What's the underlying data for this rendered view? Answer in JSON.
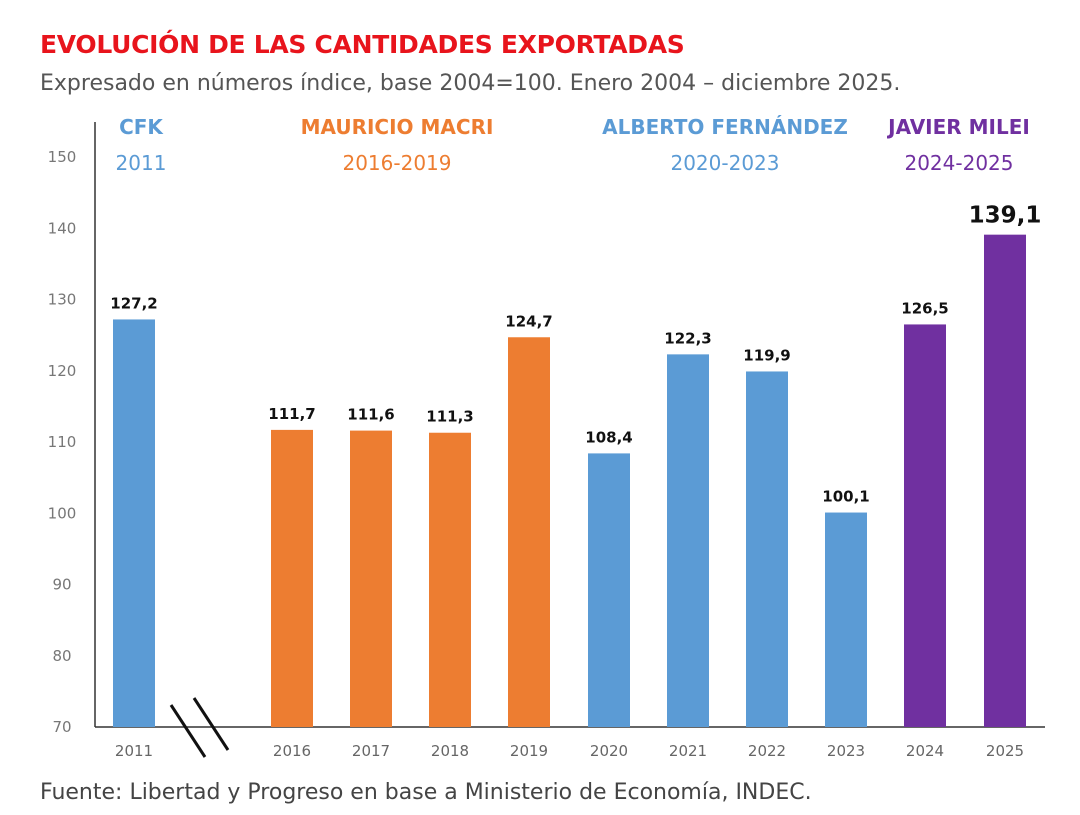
{
  "chart_data": {
    "type": "bar",
    "title": "EVOLUCIÓN DE LAS CANTIDADES EXPORTADAS",
    "subtitle": "Expresado en números índice, base 2004=100. Enero 2004 – diciembre 2025.",
    "source": "Fuente: Libertad y Progreso en base a Ministerio de Economía, INDEC.",
    "xlabel": "",
    "ylabel": "",
    "ylim": [
      70,
      150
    ],
    "yticks": [
      70,
      80,
      90,
      100,
      110,
      120,
      130,
      140,
      150
    ],
    "grid": false,
    "categories": [
      "2011",
      "2016",
      "2017",
      "2018",
      "2019",
      "2020",
      "2021",
      "2022",
      "2023",
      "2024",
      "2025"
    ],
    "values": [
      127.2,
      111.7,
      111.6,
      111.3,
      124.7,
      108.4,
      122.3,
      119.9,
      100.1,
      126.5,
      139.1
    ],
    "data_labels": [
      "127,2",
      "111,7",
      "111,6",
      "111,3",
      "124,7",
      "108,4",
      "122,3",
      "119,9",
      "100,1",
      "126,5",
      "139,1"
    ],
    "bar_period": [
      0,
      1,
      1,
      1,
      1,
      2,
      2,
      2,
      2,
      3,
      3
    ],
    "axis_break_after": "2011",
    "periods": [
      {
        "name": "CFK",
        "range": "2011",
        "color": "#5b9bd5"
      },
      {
        "name": "MAURICIO MACRI",
        "range": "2016-2019",
        "color": "#ed7d31"
      },
      {
        "name": "ALBERTO FERNÁNDEZ",
        "range": "2020-2023",
        "color": "#5b9bd5"
      },
      {
        "name": "JAVIER MILEI",
        "range": "2024-2025",
        "color": "#7030a0"
      }
    ],
    "title_color": "#e8141c"
  }
}
